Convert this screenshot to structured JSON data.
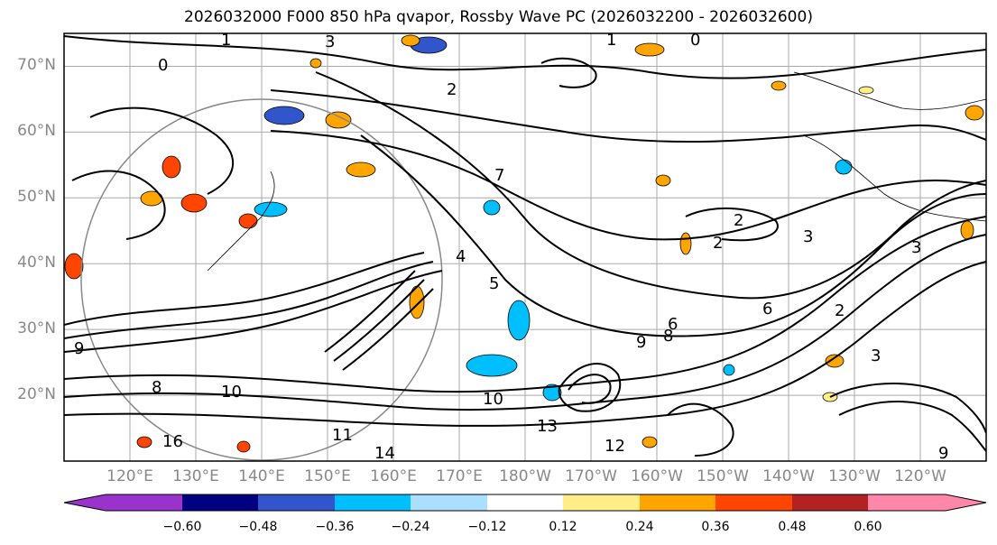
{
  "title": "2026032000 F000 850 hPa qvapor, Rossby Wave PC (2026032200 - 2026032600)",
  "lat_labels": [
    "70°N",
    "60°N",
    "50°N",
    "40°N",
    "30°N",
    "20°N"
  ],
  "lon_labels": [
    "120°E",
    "130°E",
    "140°E",
    "150°E",
    "160°E",
    "170°E",
    "180°W",
    "170°W",
    "160°W",
    "150°W",
    "140°W",
    "130°W",
    "120°W"
  ],
  "contour_labels": [
    "1",
    "0",
    "1",
    "0",
    "3",
    "2",
    "2",
    "2",
    "3",
    "4",
    "5",
    "6",
    "7",
    "8",
    "9",
    "10",
    "11",
    "12",
    "13",
    "14",
    "16",
    "9",
    "8",
    "6",
    "3",
    "2",
    "3",
    "10",
    "9"
  ],
  "colorbar": {
    "tick_labels": [
      "−0.60",
      "−0.48",
      "−0.36",
      "−0.24",
      "−0.12",
      "0.12",
      "0.24",
      "0.36",
      "0.48",
      "0.60"
    ],
    "colors": [
      "#9933cc",
      "#000080",
      "#3355cc",
      "#00bfff",
      "#aadfff",
      "#ffffff",
      "#ffee88",
      "#ffa500",
      "#ff4500",
      "#b22222",
      "#ff88aa"
    ]
  },
  "chart_data": {
    "type": "map",
    "projection": "PlateCarree",
    "lon_range": [
      110,
      250
    ],
    "lat_range": [
      10,
      75
    ],
    "gridlines": true,
    "variable": "850 hPa qvapor (contours) with Rossby Wave PC shading",
    "shading_levels": [
      -0.6,
      -0.48,
      -0.36,
      -0.24,
      -0.12,
      0.12,
      0.24,
      0.36,
      0.48,
      0.6
    ]
  }
}
